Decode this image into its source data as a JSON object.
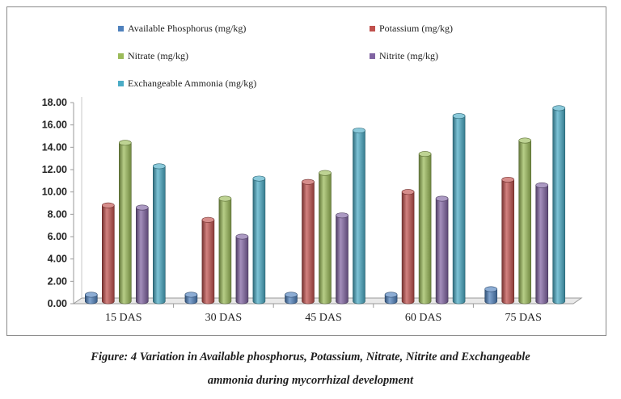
{
  "chart_data": {
    "type": "bar",
    "categories": [
      "15 DAS",
      "30 DAS",
      "45 DAS",
      "60 DAS",
      "75 DAS"
    ],
    "series": [
      {
        "name": "Available Phosphorus (mg/kg)",
        "color": "#4F81BD",
        "values": [
          0.8,
          0.8,
          0.8,
          0.8,
          1.3
        ]
      },
      {
        "name": "Potassium (mg/kg)",
        "color": "#C0504D",
        "values": [
          8.8,
          7.5,
          10.9,
          10.0,
          11.1
        ]
      },
      {
        "name": "Nitrate (mg/kg)",
        "color": "#9BBB59",
        "values": [
          14.4,
          9.4,
          11.7,
          13.4,
          14.6
        ]
      },
      {
        "name": "Nitrite (mg/kg)",
        "color": "#8064A2",
        "values": [
          8.6,
          6.0,
          7.9,
          9.4,
          10.6
        ]
      },
      {
        "name": "Exchangeable Ammonia (mg/kg)",
        "color": "#4BACC6",
        "values": [
          12.3,
          11.2,
          15.5,
          16.8,
          17.5
        ]
      }
    ],
    "yticks": [
      "0.00",
      "2.00",
      "4.00",
      "6.00",
      "8.00",
      "10.00",
      "12.00",
      "14.00",
      "16.00",
      "18.00"
    ],
    "ylim": [
      0,
      18
    ],
    "legend_position": "top",
    "grid": false,
    "style": "3d-cylinder"
  },
  "caption": {
    "line1": "Figure: 4 Variation in Available phosphorus, Potassium, Nitrate, Nitrite and Exchangeable",
    "line2": "ammonia during mycorrhizal development"
  }
}
